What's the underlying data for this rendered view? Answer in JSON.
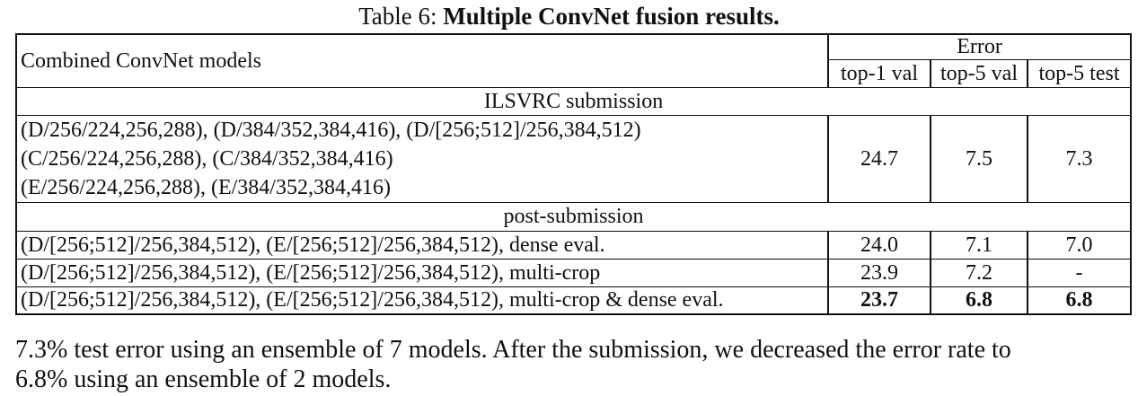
{
  "caption": {
    "prefix": "Table 6:",
    "title": "Multiple ConvNet fusion results."
  },
  "table": {
    "header": {
      "models_label": "Combined ConvNet models",
      "error_label": "Error",
      "columns": [
        "top-1 val",
        "top-5 val",
        "top-5 test"
      ]
    },
    "sections": [
      {
        "title": "ILSVRC submission",
        "rows": [
          {
            "models": [
              "(D/256/224,256,288), (D/384/352,384,416), (D/[256;512]/256,384,512)",
              "(C/256/224,256,288), (C/384/352,384,416)",
              "(E/256/224,256,288), (E/384/352,384,416)"
            ],
            "top1_val": "24.7",
            "top5_val": "7.5",
            "top5_test": "7.3"
          }
        ]
      },
      {
        "title": "post-submission",
        "rows": [
          {
            "models": "(D/[256;512]/256,384,512), (E/[256;512]/256,384,512), dense eval.",
            "top1_val": "24.0",
            "top5_val": "7.1",
            "top5_test": "7.0"
          },
          {
            "models": "(D/[256;512]/256,384,512), (E/[256;512]/256,384,512), multi-crop",
            "top1_val": "23.9",
            "top5_val": "7.2",
            "top5_test": "-"
          },
          {
            "models": "(D/[256;512]/256,384,512), (E/[256;512]/256,384,512), multi-crop & dense eval.",
            "top1_val": "23.7",
            "top5_val": "6.8",
            "top5_test": "6.8"
          }
        ]
      }
    ]
  },
  "body_text": {
    "line1": "7.3% test error using an ensemble of 7 models. After the submission, we decreased the error rate to",
    "line2": "6.8% using an ensemble of 2 models."
  }
}
